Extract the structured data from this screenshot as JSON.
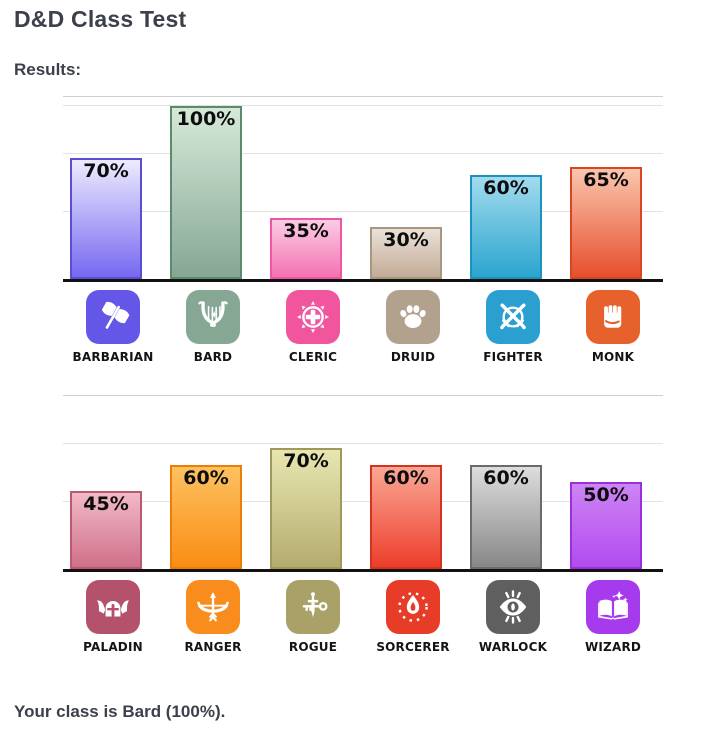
{
  "page": {
    "title": "D&D Class Test",
    "results_label": "Results:",
    "summary": "Your class is Bard (100%)."
  },
  "colors": {
    "heading_text": "#3b404a",
    "value_label_text": "#0d0d0d",
    "axis_baseline": "#121212",
    "gridline": "#e2e2e2"
  },
  "result": {
    "top_class": "Bard",
    "top_value": 100,
    "unit": "%"
  },
  "chart_data": [
    {
      "type": "bar",
      "group": "classes-row-1",
      "categories": [
        "BARBARIAN",
        "BARD",
        "CLERIC",
        "DRUID",
        "FIGHTER",
        "MONK"
      ],
      "values": [
        70,
        100,
        35,
        30,
        60,
        65
      ],
      "value_labels": [
        "70%",
        "100%",
        "35%",
        "30%",
        "60%",
        "65%"
      ],
      "unit": "%",
      "ylim": [
        0,
        105
      ],
      "grid_values": [
        100,
        72,
        39
      ],
      "grid": true,
      "legend": "none",
      "bars": [
        {
          "class": "BARBARIAN",
          "value": 70,
          "label": "70%",
          "icon": "axe-icon",
          "icon_bg": "#6457e8",
          "bar_top": "#edecfe",
          "bar_bottom": "#7668f1",
          "bar_border": "#5a4fd2"
        },
        {
          "class": "BARD",
          "value": 100,
          "label": "100%",
          "icon": "lyre-icon",
          "icon_bg": "#87a795",
          "bar_top": "#d6e9d9",
          "bar_bottom": "#86a794",
          "bar_border": "#5d8a6e"
        },
        {
          "class": "CLERIC",
          "value": 35,
          "label": "35%",
          "icon": "holy-cross-icon",
          "icon_bg": "#f0559e",
          "bar_top": "#fbcce4",
          "bar_bottom": "#f572b2",
          "bar_border": "#ee55a2"
        },
        {
          "class": "DRUID",
          "value": 30,
          "label": "30%",
          "icon": "paw-icon",
          "icon_bg": "#b2a18d",
          "bar_top": "#eae1d8",
          "bar_bottom": "#c3ab97",
          "bar_border": "#a8977f"
        },
        {
          "class": "FIGHTER",
          "value": 60,
          "label": "60%",
          "icon": "crossed-swords-icon",
          "icon_bg": "#2c9fd1",
          "bar_top": "#a3dbee",
          "bar_bottom": "#2aa5cf",
          "bar_border": "#1d92bd"
        },
        {
          "class": "MONK",
          "value": 65,
          "label": "65%",
          "icon": "fist-icon",
          "icon_bg": "#e7612c",
          "bar_top": "#f9c6ae",
          "bar_bottom": "#e64f2c",
          "bar_border": "#d84722"
        }
      ]
    },
    {
      "type": "bar",
      "group": "classes-row-2",
      "categories": [
        "PALADIN",
        "RANGER",
        "ROGUE",
        "SORCERER",
        "WARLOCK",
        "WIZARD"
      ],
      "values": [
        45,
        60,
        70,
        60,
        60,
        50
      ],
      "value_labels": [
        "45%",
        "60%",
        "70%",
        "60%",
        "60%",
        "50%"
      ],
      "unit": "%",
      "ylim": [
        0,
        100
      ],
      "grid_values": [
        72,
        39
      ],
      "grid": true,
      "legend": "none",
      "bars": [
        {
          "class": "PALADIN",
          "value": 45,
          "label": "45%",
          "icon": "winged-helmet-icon",
          "icon_bg": "#b4516d",
          "bar_top": "#f2bac7",
          "bar_bottom": "#cf7089",
          "bar_border": "#bc5873"
        },
        {
          "class": "RANGER",
          "value": 60,
          "label": "60%",
          "icon": "bow-arrow-icon",
          "icon_bg": "#f88d1d",
          "bar_top": "#fdc160",
          "bar_bottom": "#fa8d14",
          "bar_border": "#e97f06"
        },
        {
          "class": "ROGUE",
          "value": 70,
          "label": "70%",
          "icon": "dagger-key-icon",
          "icon_bg": "#a9a167",
          "bar_top": "#e8e6b1",
          "bar_bottom": "#b4ac6e",
          "bar_border": "#a1985a"
        },
        {
          "class": "SORCERER",
          "value": 60,
          "label": "60%",
          "icon": "flame-icon",
          "icon_bg": "#e73d28",
          "bar_top": "#f9a794",
          "bar_bottom": "#ec3e2b",
          "bar_border": "#d4331f"
        },
        {
          "class": "WARLOCK",
          "value": 60,
          "label": "60%",
          "icon": "eye-icon",
          "icon_bg": "#5f5f5f",
          "bar_top": "#dddddd",
          "bar_bottom": "#878787",
          "bar_border": "#6b6b6b"
        },
        {
          "class": "WIZARD",
          "value": 50,
          "label": "50%",
          "icon": "magic-book-icon",
          "icon_bg": "#a63bee",
          "bar_top": "#cd84f4",
          "bar_bottom": "#b34bf0",
          "bar_border": "#9a30dc"
        }
      ]
    }
  ]
}
